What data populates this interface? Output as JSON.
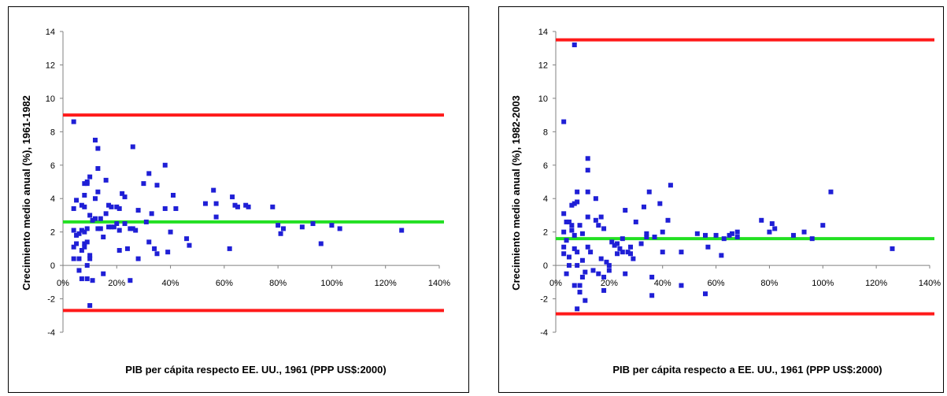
{
  "chart_data": [
    {
      "type": "scatter",
      "title": "",
      "xlabel": "PIB per cápita respecto EE. UU., 1961 (PPP US$:2000)",
      "ylabel": "Crecimiento medio anual (%), 1961-1982",
      "xlim": [
        0,
        1.4
      ],
      "ylim": [
        -4,
        14
      ],
      "x_ticks": [
        "0%",
        "20%",
        "40%",
        "60%",
        "80%",
        "100%",
        "120%",
        "140%"
      ],
      "y_ticks": [
        "-4",
        "-2",
        "0",
        "2",
        "4",
        "6",
        "8",
        "10",
        "12",
        "14"
      ],
      "grid": false,
      "colors": {
        "points": "#1f1fd6",
        "bounds": "#ff1a1a",
        "mean": "#22e022",
        "frame": "#808080"
      },
      "reference_lines": [
        {
          "role": "upper",
          "y": 9.0,
          "color": "#ff1a1a"
        },
        {
          "role": "mean",
          "y": 2.6,
          "color": "#22e022"
        },
        {
          "role": "lower",
          "y": -2.7,
          "color": "#ff1a1a"
        }
      ],
      "points": [
        [
          0.04,
          8.6
        ],
        [
          0.04,
          3.4
        ],
        [
          0.04,
          2.1
        ],
        [
          0.04,
          1.1
        ],
        [
          0.04,
          0.4
        ],
        [
          0.05,
          3.9
        ],
        [
          0.05,
          1.8
        ],
        [
          0.05,
          1.3
        ],
        [
          0.06,
          1.9
        ],
        [
          0.06,
          0.4
        ],
        [
          0.06,
          -0.3
        ],
        [
          0.07,
          3.6
        ],
        [
          0.07,
          2.1
        ],
        [
          0.07,
          0.9
        ],
        [
          0.07,
          -0.8
        ],
        [
          0.08,
          4.9
        ],
        [
          0.08,
          4.2
        ],
        [
          0.08,
          3.5
        ],
        [
          0.08,
          2.0
        ],
        [
          0.08,
          1.3
        ],
        [
          0.08,
          1.1
        ],
        [
          0.09,
          5.0
        ],
        [
          0.09,
          4.9
        ],
        [
          0.09,
          2.2
        ],
        [
          0.09,
          1.4
        ],
        [
          0.09,
          0.0
        ],
        [
          0.09,
          -0.8
        ],
        [
          0.1,
          5.3
        ],
        [
          0.1,
          3.0
        ],
        [
          0.1,
          0.6
        ],
        [
          0.1,
          0.4
        ],
        [
          0.1,
          -2.4
        ],
        [
          0.11,
          2.7
        ],
        [
          0.11,
          -0.9
        ],
        [
          0.12,
          7.5
        ],
        [
          0.12,
          4.0
        ],
        [
          0.12,
          2.8
        ],
        [
          0.13,
          7.0
        ],
        [
          0.13,
          5.8
        ],
        [
          0.13,
          4.4
        ],
        [
          0.13,
          2.2
        ],
        [
          0.14,
          2.8
        ],
        [
          0.14,
          2.2
        ],
        [
          0.15,
          1.7
        ],
        [
          0.15,
          -0.5
        ],
        [
          0.16,
          5.1
        ],
        [
          0.16,
          3.1
        ],
        [
          0.17,
          3.6
        ],
        [
          0.17,
          2.3
        ],
        [
          0.18,
          3.5
        ],
        [
          0.18,
          2.3
        ],
        [
          0.19,
          2.3
        ],
        [
          0.2,
          3.5
        ],
        [
          0.2,
          2.5
        ],
        [
          0.21,
          3.4
        ],
        [
          0.21,
          2.1
        ],
        [
          0.21,
          0.9
        ],
        [
          0.22,
          4.3
        ],
        [
          0.23,
          4.1
        ],
        [
          0.23,
          2.5
        ],
        [
          0.24,
          1.0
        ],
        [
          0.25,
          -0.9
        ],
        [
          0.25,
          2.2
        ],
        [
          0.26,
          7.1
        ],
        [
          0.26,
          2.2
        ],
        [
          0.27,
          2.1
        ],
        [
          0.28,
          3.3
        ],
        [
          0.28,
          0.4
        ],
        [
          0.3,
          4.9
        ],
        [
          0.31,
          2.6
        ],
        [
          0.32,
          5.5
        ],
        [
          0.32,
          1.4
        ],
        [
          0.33,
          3.1
        ],
        [
          0.34,
          1.0
        ],
        [
          0.35,
          4.8
        ],
        [
          0.35,
          0.7
        ],
        [
          0.38,
          6.0
        ],
        [
          0.38,
          3.4
        ],
        [
          0.39,
          0.8
        ],
        [
          0.4,
          2.0
        ],
        [
          0.41,
          4.2
        ],
        [
          0.42,
          3.4
        ],
        [
          0.46,
          1.6
        ],
        [
          0.47,
          1.2
        ],
        [
          0.53,
          3.7
        ],
        [
          0.56,
          4.5
        ],
        [
          0.57,
          3.7
        ],
        [
          0.57,
          2.9
        ],
        [
          0.62,
          1.0
        ],
        [
          0.63,
          4.1
        ],
        [
          0.64,
          3.6
        ],
        [
          0.65,
          3.5
        ],
        [
          0.68,
          3.6
        ],
        [
          0.69,
          3.5
        ],
        [
          0.78,
          3.5
        ],
        [
          0.8,
          2.4
        ],
        [
          0.81,
          1.9
        ],
        [
          0.82,
          2.2
        ],
        [
          0.89,
          2.3
        ],
        [
          0.93,
          2.5
        ],
        [
          0.96,
          1.3
        ],
        [
          1.0,
          2.4
        ],
        [
          1.03,
          2.2
        ],
        [
          1.26,
          2.1
        ]
      ]
    },
    {
      "type": "scatter",
      "title": "",
      "xlabel": "PIB per cápita respecto a EE. UU., 1961 (PPP US$:2000)",
      "ylabel": "Crecimiento medio anual (%), 1982-2003",
      "xlim": [
        0,
        1.4
      ],
      "ylim": [
        -4,
        14
      ],
      "x_ticks": [
        "0%",
        "20%",
        "40%",
        "60%",
        "80%",
        "100%",
        "120%",
        "140%"
      ],
      "y_ticks": [
        "-4",
        "-2",
        "0",
        "2",
        "4",
        "6",
        "8",
        "10",
        "12",
        "14"
      ],
      "grid": false,
      "colors": {
        "points": "#1f1fd6",
        "bounds": "#ff1a1a",
        "mean": "#22e022",
        "frame": "#808080"
      },
      "reference_lines": [
        {
          "role": "upper",
          "y": 13.5,
          "color": "#ff1a1a"
        },
        {
          "role": "mean",
          "y": 1.6,
          "color": "#22e022"
        },
        {
          "role": "lower",
          "y": -2.9,
          "color": "#ff1a1a"
        }
      ],
      "points": [
        [
          0.03,
          8.6
        ],
        [
          0.03,
          3.1
        ],
        [
          0.03,
          2.0
        ],
        [
          0.03,
          1.1
        ],
        [
          0.03,
          0.7
        ],
        [
          0.04,
          2.6
        ],
        [
          0.04,
          1.5
        ],
        [
          0.04,
          -0.5
        ],
        [
          0.05,
          2.6
        ],
        [
          0.05,
          0.5
        ],
        [
          0.05,
          0.0
        ],
        [
          0.06,
          2.4
        ],
        [
          0.06,
          2.1
        ],
        [
          0.06,
          3.6
        ],
        [
          0.07,
          13.2
        ],
        [
          0.07,
          3.7
        ],
        [
          0.07,
          1.8
        ],
        [
          0.07,
          1.0
        ],
        [
          0.07,
          -1.2
        ],
        [
          0.08,
          4.4
        ],
        [
          0.08,
          3.8
        ],
        [
          0.08,
          0.8
        ],
        [
          0.08,
          0.0
        ],
        [
          0.08,
          -2.6
        ],
        [
          0.09,
          2.4
        ],
        [
          0.09,
          -1.2
        ],
        [
          0.09,
          -1.6
        ],
        [
          0.1,
          1.9
        ],
        [
          0.1,
          0.3
        ],
        [
          0.1,
          -0.7
        ],
        [
          0.11,
          -2.1
        ],
        [
          0.11,
          -0.4
        ],
        [
          0.12,
          6.4
        ],
        [
          0.12,
          5.7
        ],
        [
          0.12,
          4.4
        ],
        [
          0.12,
          2.9
        ],
        [
          0.12,
          1.1
        ],
        [
          0.13,
          0.8
        ],
        [
          0.14,
          -0.3
        ],
        [
          0.15,
          4.0
        ],
        [
          0.15,
          2.7
        ],
        [
          0.16,
          2.4
        ],
        [
          0.16,
          -0.5
        ],
        [
          0.17,
          2.9
        ],
        [
          0.17,
          0.4
        ],
        [
          0.18,
          2.2
        ],
        [
          0.18,
          -1.5
        ],
        [
          0.18,
          -0.7
        ],
        [
          0.19,
          0.2
        ],
        [
          0.2,
          0.0
        ],
        [
          0.2,
          -0.3
        ],
        [
          0.21,
          1.4
        ],
        [
          0.22,
          1.2
        ],
        [
          0.23,
          0.7
        ],
        [
          0.23,
          1.3
        ],
        [
          0.24,
          1.0
        ],
        [
          0.25,
          0.8
        ],
        [
          0.25,
          1.6
        ],
        [
          0.26,
          3.3
        ],
        [
          0.26,
          -0.5
        ],
        [
          0.27,
          0.8
        ],
        [
          0.28,
          0.7
        ],
        [
          0.28,
          1.1
        ],
        [
          0.29,
          0.4
        ],
        [
          0.3,
          2.6
        ],
        [
          0.32,
          1.3
        ],
        [
          0.33,
          3.5
        ],
        [
          0.34,
          1.9
        ],
        [
          0.34,
          1.7
        ],
        [
          0.35,
          4.4
        ],
        [
          0.36,
          -0.7
        ],
        [
          0.36,
          -1.8
        ],
        [
          0.37,
          1.7
        ],
        [
          0.39,
          3.7
        ],
        [
          0.4,
          2.0
        ],
        [
          0.4,
          0.8
        ],
        [
          0.42,
          2.7
        ],
        [
          0.43,
          4.8
        ],
        [
          0.47,
          0.8
        ],
        [
          0.47,
          -1.2
        ],
        [
          0.53,
          1.9
        ],
        [
          0.56,
          1.8
        ],
        [
          0.56,
          -1.7
        ],
        [
          0.57,
          1.1
        ],
        [
          0.6,
          1.8
        ],
        [
          0.62,
          0.6
        ],
        [
          0.63,
          1.6
        ],
        [
          0.65,
          1.8
        ],
        [
          0.66,
          1.9
        ],
        [
          0.68,
          1.7
        ],
        [
          0.68,
          2.0
        ],
        [
          0.77,
          2.7
        ],
        [
          0.8,
          2.0
        ],
        [
          0.81,
          2.5
        ],
        [
          0.82,
          2.2
        ],
        [
          0.89,
          1.8
        ],
        [
          0.93,
          2.0
        ],
        [
          0.96,
          1.6
        ],
        [
          1.0,
          2.4
        ],
        [
          1.03,
          4.4
        ],
        [
          1.26,
          1.0
        ]
      ]
    }
  ]
}
